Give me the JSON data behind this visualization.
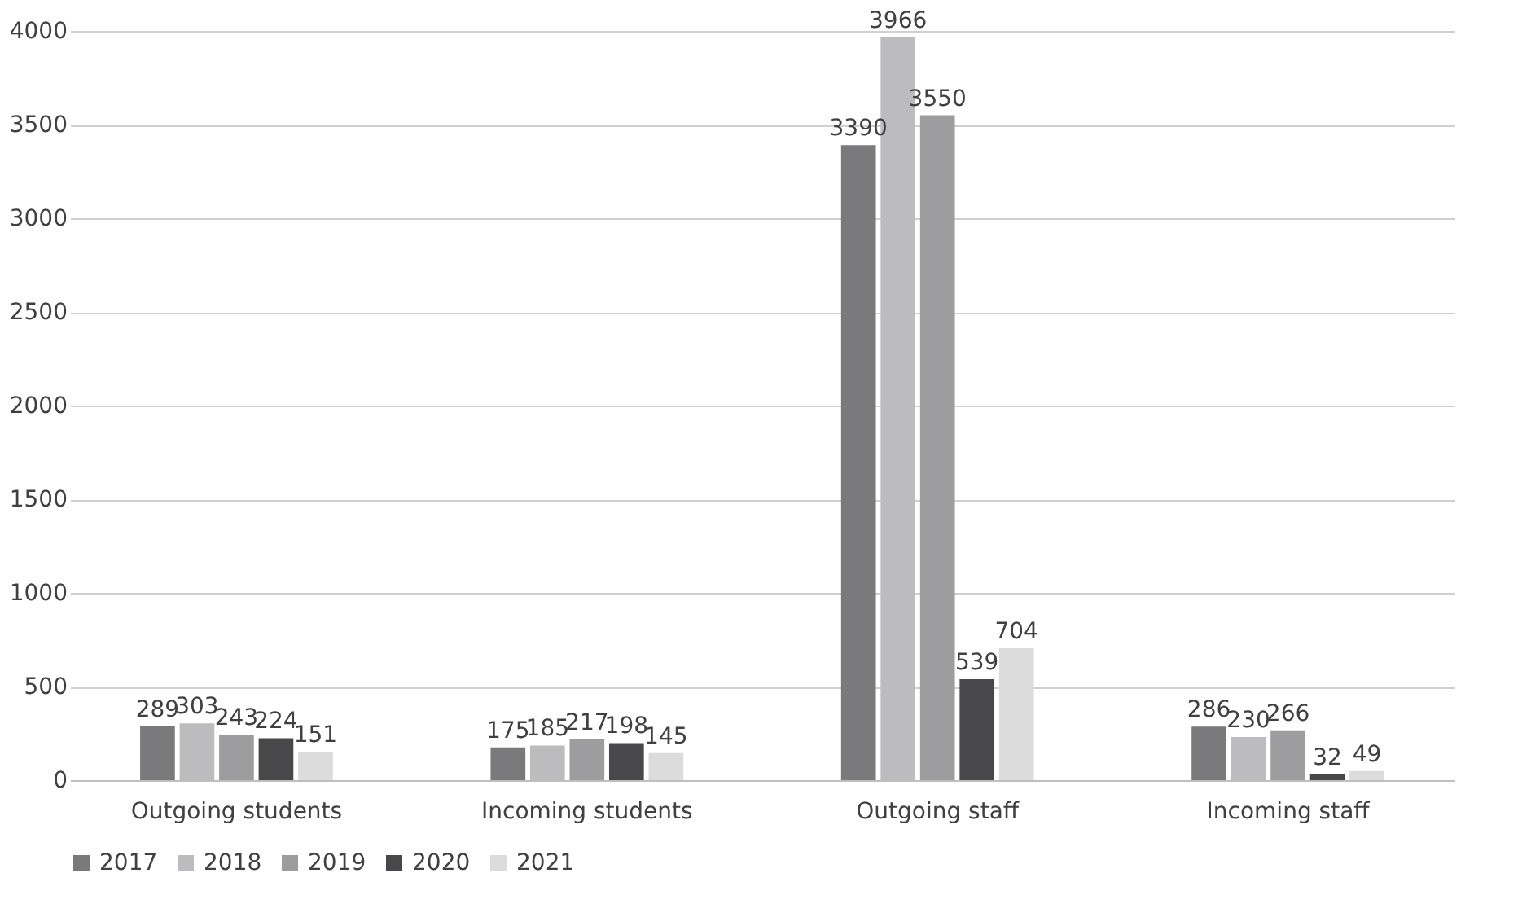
{
  "chart_data": {
    "type": "bar",
    "categories": [
      "Outgoing students",
      "Incoming students",
      "Outgoing staff",
      "Incoming staff"
    ],
    "series": [
      {
        "name": "2017",
        "color": "#7a7a7c",
        "values": [
          289,
          175,
          3390,
          286
        ]
      },
      {
        "name": "2018",
        "color": "#bcbcbe",
        "values": [
          303,
          185,
          3966,
          230
        ]
      },
      {
        "name": "2019",
        "color": "#9d9d9f",
        "values": [
          243,
          217,
          3550,
          266
        ]
      },
      {
        "name": "2020",
        "color": "#48484a",
        "values": [
          224,
          198,
          539,
          32
        ]
      },
      {
        "name": "2021",
        "color": "#dcdcdd",
        "values": [
          151,
          145,
          704,
          49
        ]
      }
    ],
    "ylim": [
      0,
      4000
    ],
    "yticks": [
      0,
      500,
      1000,
      1500,
      2000,
      2500,
      3000,
      3500,
      4000
    ],
    "grid": "y",
    "legend": "bottom",
    "data_labels": true
  }
}
